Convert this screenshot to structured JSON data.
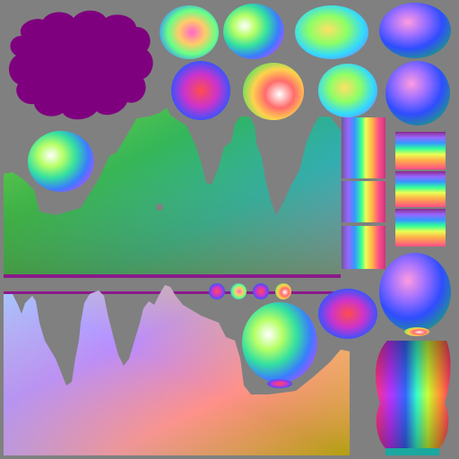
{
  "atlas": {
    "background": "#808080",
    "island_colors": {
      "magenta_blob": "#7f007f",
      "trim_strip": "#8a1a8a"
    },
    "island_kinds": [
      "cloud-blob",
      "sphere",
      "terrain-cliff",
      "stripe-tile",
      "small-sphere",
      "vase"
    ]
  }
}
